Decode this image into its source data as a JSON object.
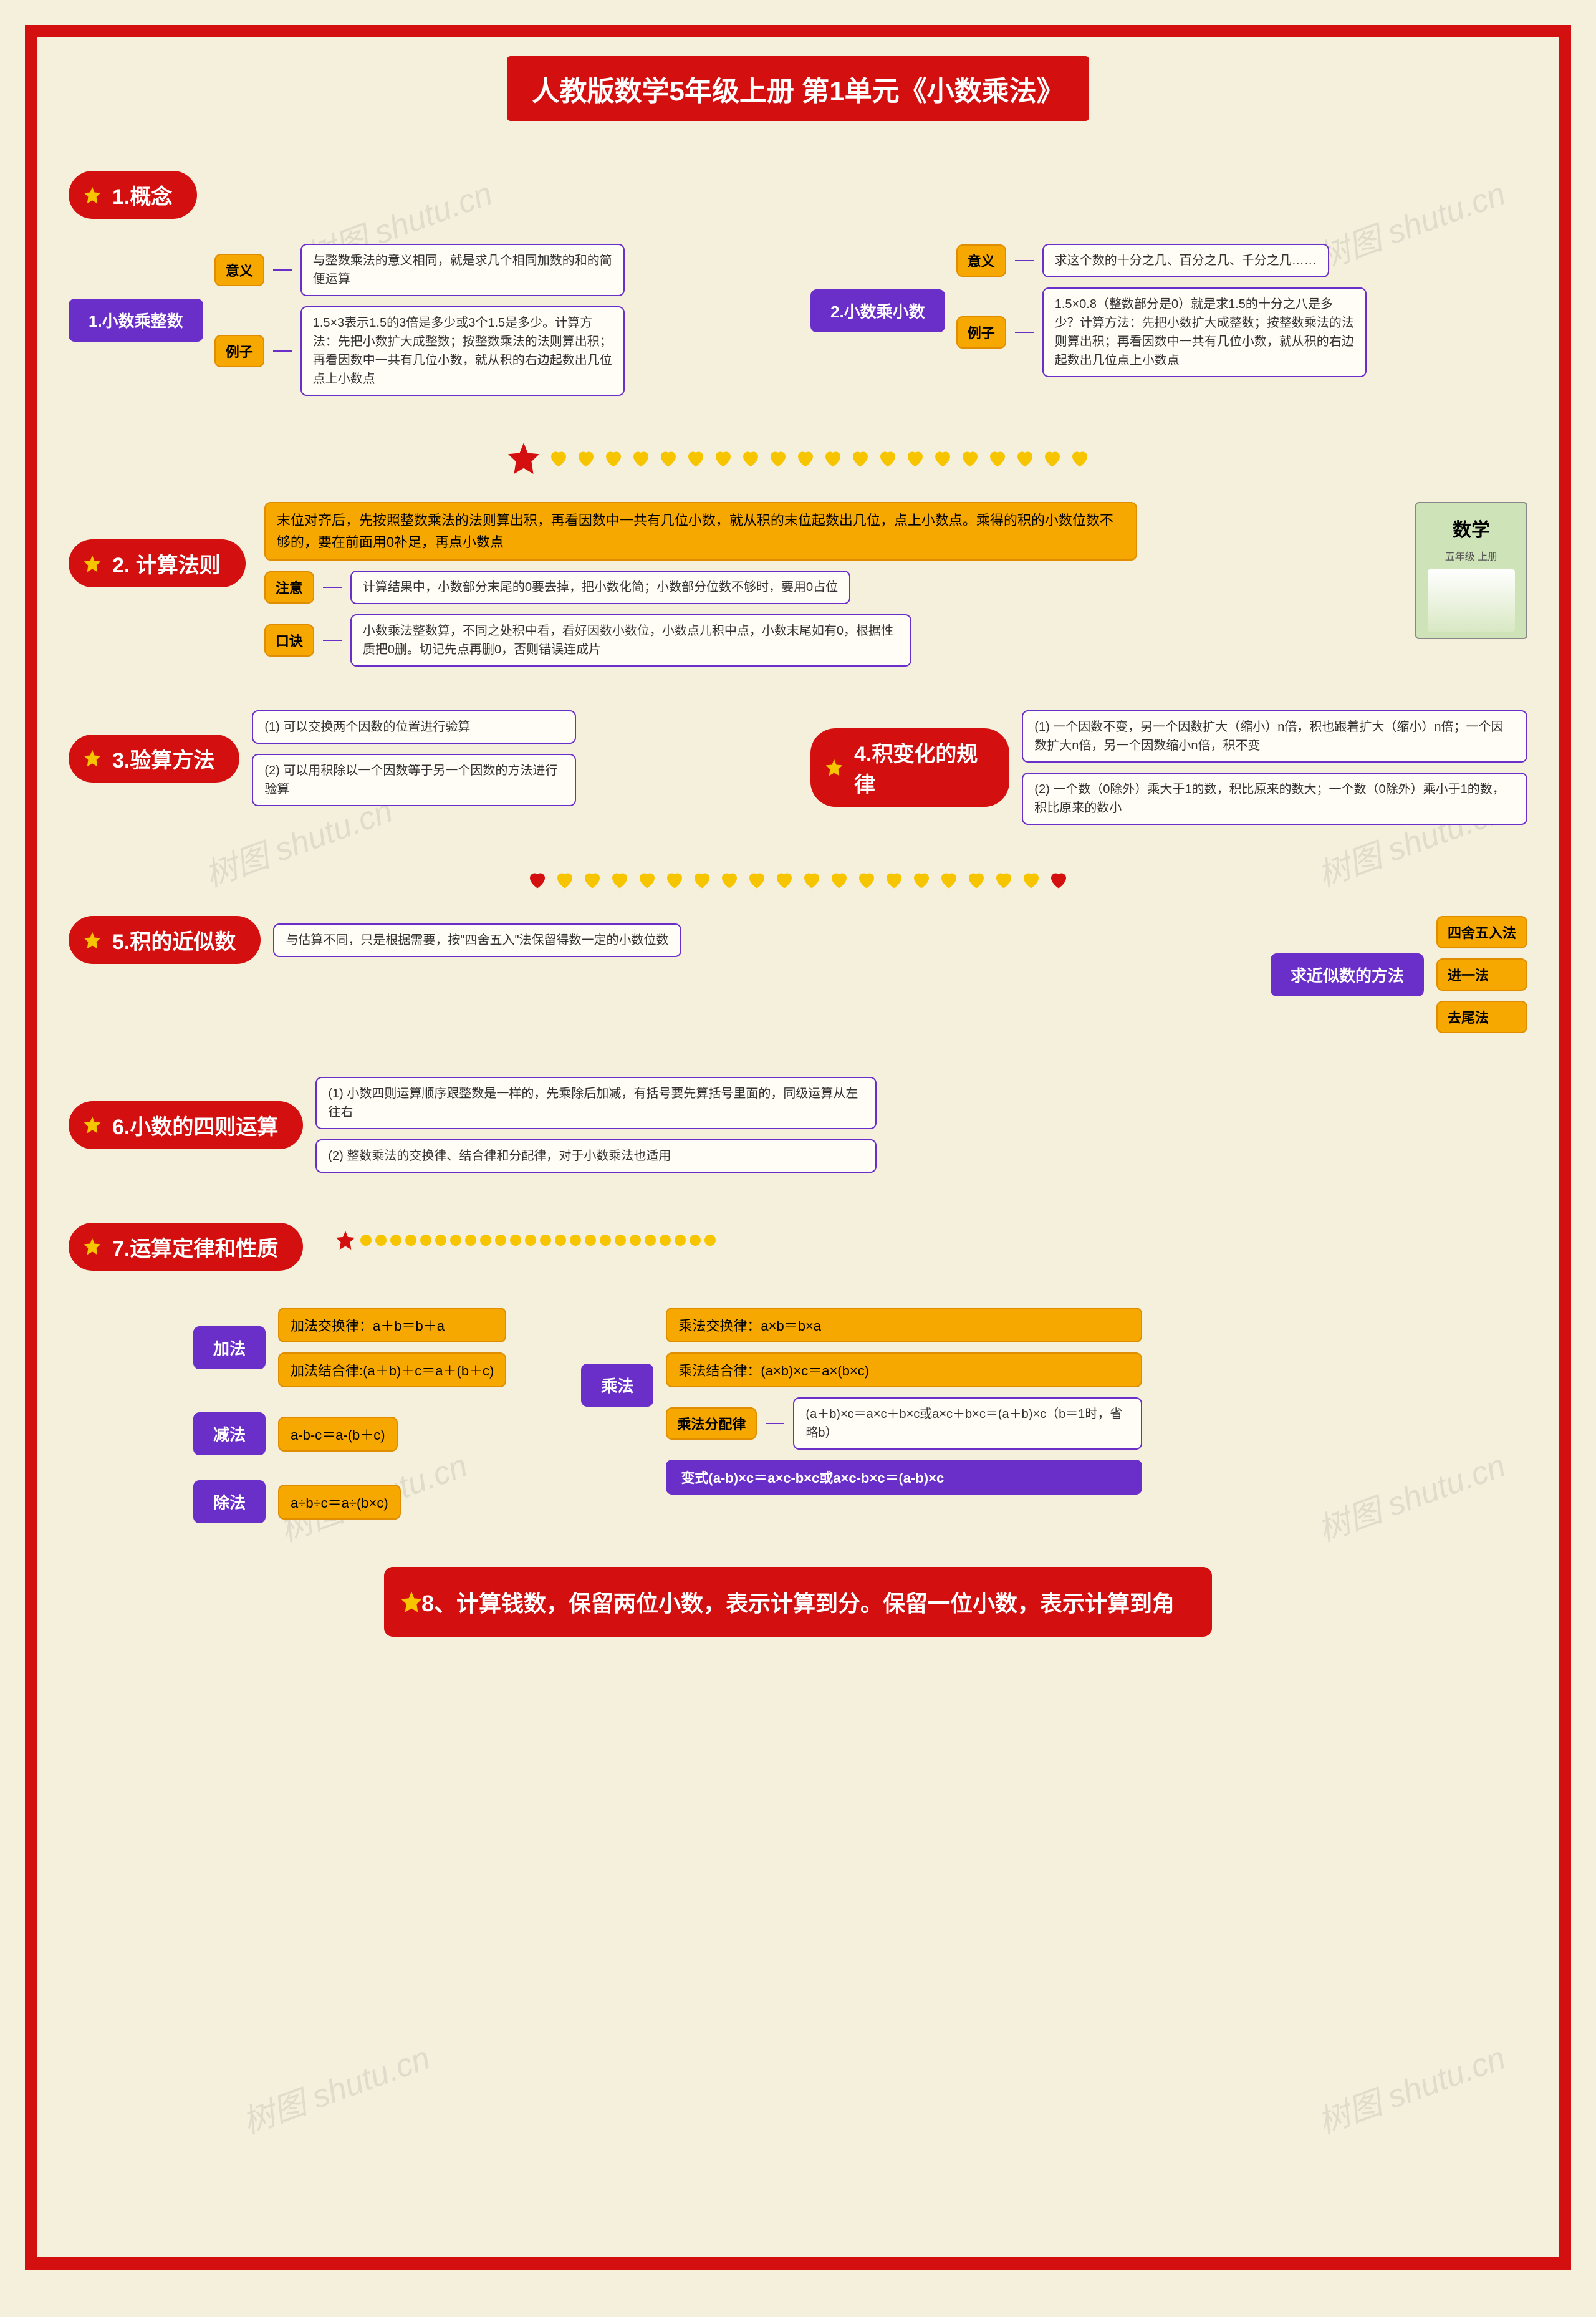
{
  "colors": {
    "frame": "#d40f0f",
    "bg": "#f5f0dc",
    "purple": "#6b2fc9",
    "orange": "#f6a800",
    "yellow_heart": "#f6c500",
    "red_heart": "#d40f0f",
    "node_border": "#6b2fc9",
    "node_bg": "#fffdf5",
    "text": "#333333",
    "white": "#ffffff"
  },
  "typography": {
    "title_fontsize": 44,
    "section_header_fontsize": 34,
    "node_purple_fontsize": 26,
    "node_text_fontsize": 20,
    "footer_fontsize": 36,
    "watermark_fontsize": 52
  },
  "title": "人教版数学5年级上册 第1单元《小数乘法》",
  "watermark_text": "树图 shutu.cn",
  "section1": {
    "header": "1.概念",
    "left": {
      "title": "1.小数乘整数",
      "meaning_tag": "意义",
      "meaning_text": "与整数乘法的意义相同，就是求几个相同加数的和的简便运算",
      "example_tag": "例子",
      "example_text": "1.5×3表示1.5的3倍是多少或3个1.5是多少。计算方法：先把小数扩大成整数；按整数乘法的法则算出积；再看因数中一共有几位小数，就从积的右边起数出几位点上小数点"
    },
    "right": {
      "title": "2.小数乘小数",
      "meaning_tag": "意义",
      "meaning_text": "求这个数的十分之几、百分之几、千分之几……",
      "example_tag": "例子",
      "example_text": "1.5×0.8（整数部分是0）就是求1.5的十分之八是多少？计算方法：先把小数扩大成整数；按整数乘法的法则算出积；再看因数中一共有几位小数，就从积的右边起数出几位点上小数点"
    }
  },
  "hearts_row1": {
    "count": 20,
    "star_position": 0
  },
  "section2": {
    "header": "2. 计算法则",
    "main_rule": "末位对齐后，先按照整数乘法的法则算出积，再看因数中一共有几位小数，就从积的末位起数出几位，点上小数点。乘得的积的小数位数不够的，要在前面用0补足，再点小数点",
    "note_tag": "注意",
    "note_text": "计算结果中，小数部分末尾的0要去掉，把小数化简；小数部分位数不够时，要用0占位",
    "tip_tag": "口诀",
    "tip_text": "小数乘法整数算，不同之处积中看，看好因数小数位，小数点儿积中点，小数末尾如有0，根据性质把0删。切记先点再删0，否则错误连成片",
    "textbook": {
      "label_top": "数学",
      "label_grade": "五年级\n上册"
    }
  },
  "section3": {
    "header": "3.验算方法",
    "item1": "(1) 可以交换两个因数的位置进行验算",
    "item2": "(2) 可以用积除以一个因数等于另一个因数的方法进行验算"
  },
  "section4": {
    "header": "4.积变化的规律",
    "item1": "(1) 一个因数不变，另一个因数扩大（缩小）n倍，积也跟着扩大（缩小）n倍；一个因数扩大n倍，另一个因数缩小n倍，积不变",
    "item2": "(2) 一个数（0除外）乘大于1的数，积比原来的数大；一个数（0除外）乘小于1的数，积比原来的数小"
  },
  "hearts_row2": {
    "count": 20,
    "red_positions": [
      0,
      19
    ]
  },
  "section5": {
    "header": "5.积的近似数",
    "text": "与估算不同，只是根据需要，按\"四舍五入\"法保留得数一定的小数位数"
  },
  "section5b": {
    "header": "求近似数的方法",
    "items": [
      "四舍五入法",
      "进一法",
      "去尾法"
    ]
  },
  "section6": {
    "header": "6.小数的四则运算",
    "item1": "(1) 小数四则运算顺序跟整数是一样的，先乘除后加减，有括号要先算括号里面的，同级运算从左往右",
    "item2": "(2) 整数乘法的交换律、结合律和分配律，对于小数乘法也适用"
  },
  "section7": {
    "header": "7.运算定律和性质",
    "dots_count": 24,
    "addition": {
      "title": "加法",
      "rule1_tag": "加法交换律：a＋b＝b＋a",
      "rule2_tag": "加法结合律:(a＋b)＋c＝a＋(b＋c)"
    },
    "subtraction": {
      "title": "减法",
      "rule": "a-b-c＝a-(b＋c)"
    },
    "division": {
      "title": "除法",
      "rule": "a÷b÷c＝a÷(b×c)"
    },
    "multiplication": {
      "title": "乘法",
      "rule1": "乘法交换律：a×b＝b×a",
      "rule2": "乘法结合律：(a×b)×c＝a×(b×c)",
      "rule3_tag": "乘法分配律",
      "rule3_text": "(a＋b)×c＝a×c＋b×c或a×c＋b×c＝(a＋b)×c（b＝1时，省略b）",
      "variant": "变式(a-b)×c＝a×c-b×c或a×c-b×c＝(a-b)×c"
    }
  },
  "footer": "8、计算钱数，保留两位小数，表示计算到分。保留一位小数，表示计算到角"
}
